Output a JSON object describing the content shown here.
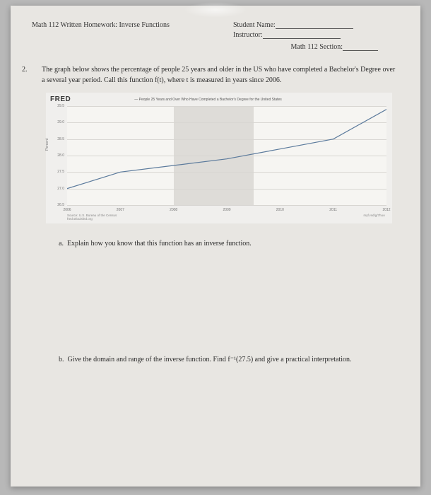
{
  "header": {
    "course_title": "Math 112 Written Homework: Inverse Functions",
    "name_label": "Student Name:",
    "instructor_label": "Instructor:",
    "section_label": "Math 112 Section:"
  },
  "question": {
    "number": "2.",
    "text": "The graph below shows the percentage of people 25 years and older in the US who have completed a Bachelor's Degree over a several year period.  Call this function f(t), where t is measured in years since 2006."
  },
  "chart": {
    "brand": "FRED",
    "series_label": "— People 25 Years and Over Who Have Completed a Bachelor's Degree for the United States",
    "ylabel": "Percent",
    "yticks": [
      "26.5",
      "27.0",
      "27.5",
      "28.0",
      "28.5",
      "29.0",
      "29.5"
    ],
    "ylim": [
      26.5,
      29.5
    ],
    "xticks": [
      "2006",
      "2007",
      "2008",
      "2009",
      "2010",
      "2011",
      "2012"
    ],
    "xlim": [
      2006,
      2012
    ],
    "shade_band": [
      2008,
      2009.5
    ],
    "line_color": "#5b7a9c",
    "grid_color": "#d8d6d2",
    "bg_color": "#f6f5f2",
    "shade_color": "#dedcd8",
    "points": [
      [
        2006,
        27.0
      ],
      [
        2007,
        27.5
      ],
      [
        2008,
        27.7
      ],
      [
        2009,
        27.9
      ],
      [
        2010,
        28.2
      ],
      [
        2011,
        28.5
      ],
      [
        2012,
        29.4
      ]
    ],
    "source_left": "Source: U.S. Bureau of the Census\nfred.stlouisfed.org",
    "source_right": "myf.red/g/7huA"
  },
  "sub_a": {
    "letter": "a.",
    "text": "Explain how you know that this function has an inverse function."
  },
  "sub_b": {
    "letter": "b.",
    "text": "Give the domain and range of the inverse function.  Find f⁻¹(27.5) and give a practical interpretation."
  }
}
